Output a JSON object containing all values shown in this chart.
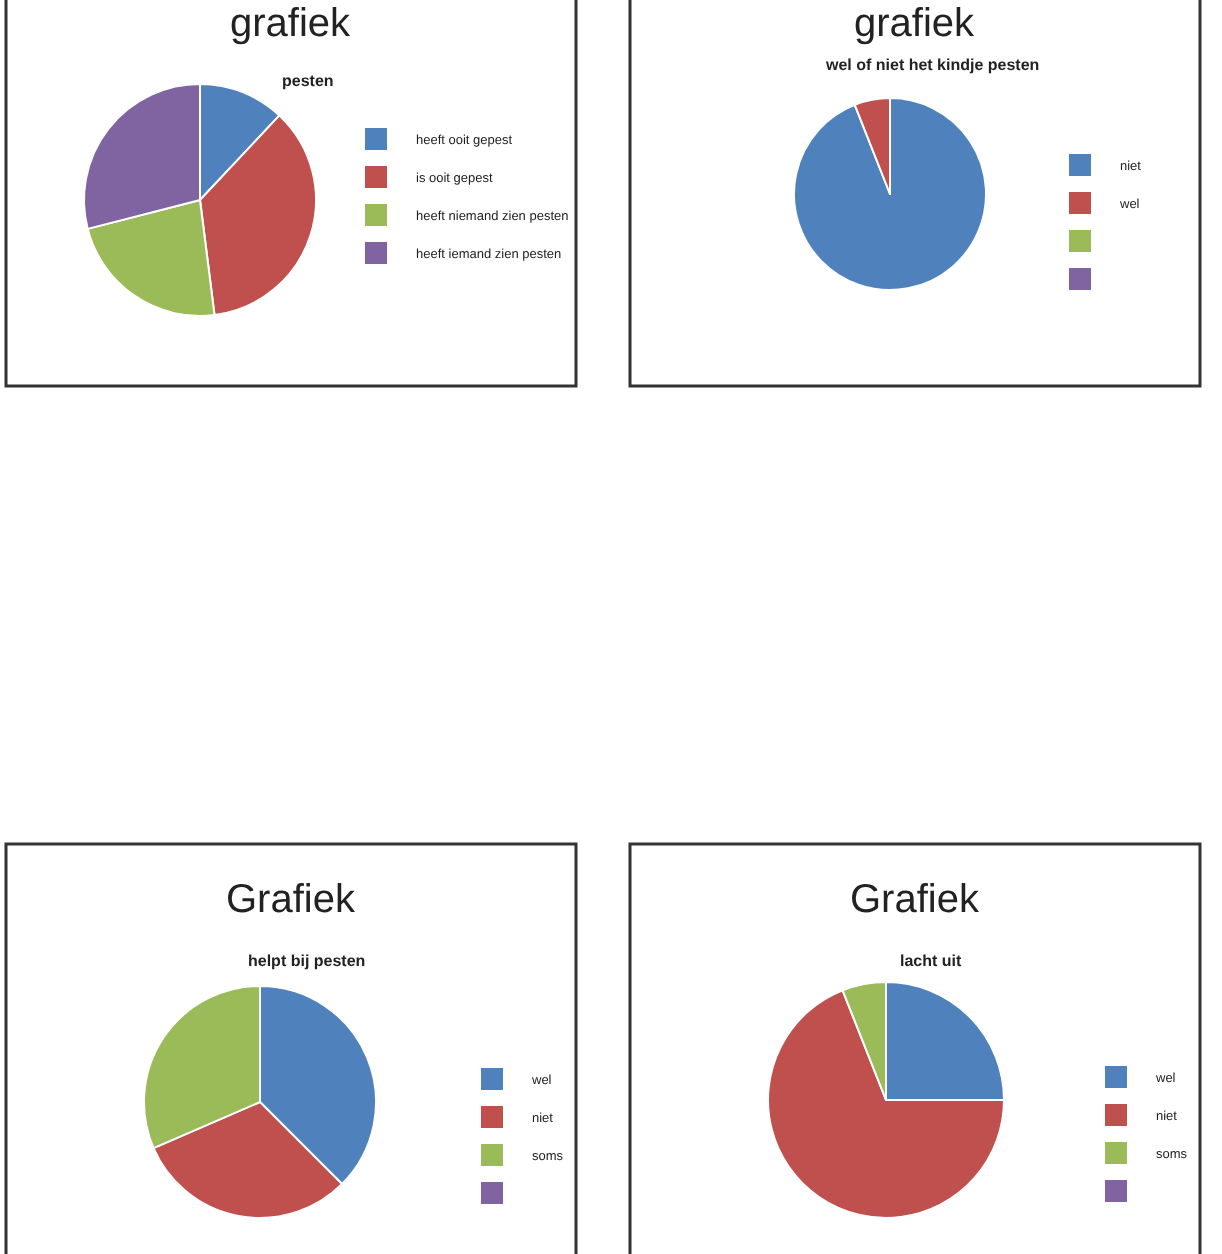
{
  "chart_data": [
    {
      "type": "pie",
      "title": "grafiek",
      "subtitle": "pesten",
      "categories": [
        "heeft ooit gepest",
        "is ooit gepest",
        "heeft niemand zien pesten",
        "heeft iemand zien pesten"
      ],
      "values": [
        12,
        36,
        23,
        29
      ],
      "colors": [
        "#4f81bd",
        "#c0504d",
        "#9bbb59",
        "#8064a2"
      ],
      "legend": "right"
    },
    {
      "type": "pie",
      "title": "grafiek",
      "subtitle": "wel of niet het kindje pesten",
      "categories": [
        "niet",
        "wel",
        null,
        null
      ],
      "values": [
        94,
        6,
        0,
        0
      ],
      "colors": [
        "#4f81bd",
        "#c0504d",
        "#9bbb59",
        "#8064a2"
      ],
      "legend": "right"
    },
    {
      "type": "pie",
      "title": "Grafiek",
      "subtitle": "helpt bij pesten",
      "categories": [
        "wel",
        "niet",
        "soms",
        null
      ],
      "values": [
        37.5,
        31,
        31.5,
        0
      ],
      "colors": [
        "#4f81bd",
        "#c0504d",
        "#9bbb59",
        "#8064a2"
      ],
      "legend": "right"
    },
    {
      "type": "pie",
      "title": "Grafiek",
      "subtitle": "lacht uit",
      "categories": [
        "wel",
        "niet",
        "soms",
        null
      ],
      "values": [
        25,
        69,
        6,
        0
      ],
      "colors": [
        "#4f81bd",
        "#c0504d",
        "#9bbb59",
        "#8064a2"
      ],
      "legend": "right"
    }
  ]
}
